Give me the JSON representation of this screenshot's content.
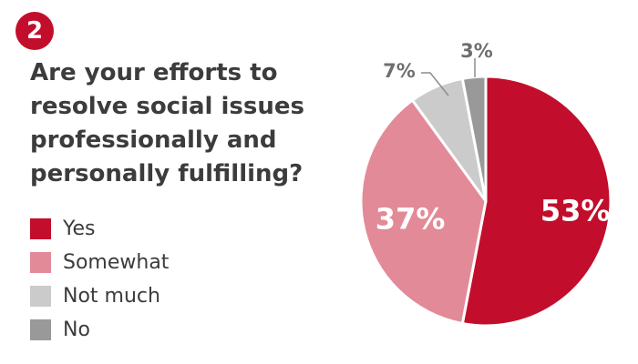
{
  "badge": {
    "number": "2"
  },
  "question": {
    "lines": [
      "Are your efforts to",
      "resolve social issues",
      "professionally and",
      "personally fulfilling?"
    ]
  },
  "legend": {
    "items": [
      {
        "label": "Yes",
        "color": "#c20e2c"
      },
      {
        "label": "Somewhat",
        "color": "#e28a97"
      },
      {
        "label": "Not much",
        "color": "#cbcbcb"
      },
      {
        "label": "No",
        "color": "#999999"
      }
    ]
  },
  "chart_data": {
    "type": "pie",
    "start": "12 o'clock",
    "direction": "clockwise",
    "slices": [
      {
        "name": "Yes",
        "value": 53,
        "label": "53%",
        "color": "#c20e2c"
      },
      {
        "name": "Somewhat",
        "value": 37,
        "label": "37%",
        "color": "#e28a97"
      },
      {
        "name": "Not much",
        "value": 7,
        "label": "7%",
        "color": "#cbcbcb"
      },
      {
        "name": "No",
        "value": 3,
        "label": "3%",
        "color": "#999999"
      }
    ],
    "label_style": {
      "Yes": "inside-white",
      "Somewhat": "inside-white",
      "Not much": "outside-leader",
      "No": "outside-leader"
    }
  }
}
